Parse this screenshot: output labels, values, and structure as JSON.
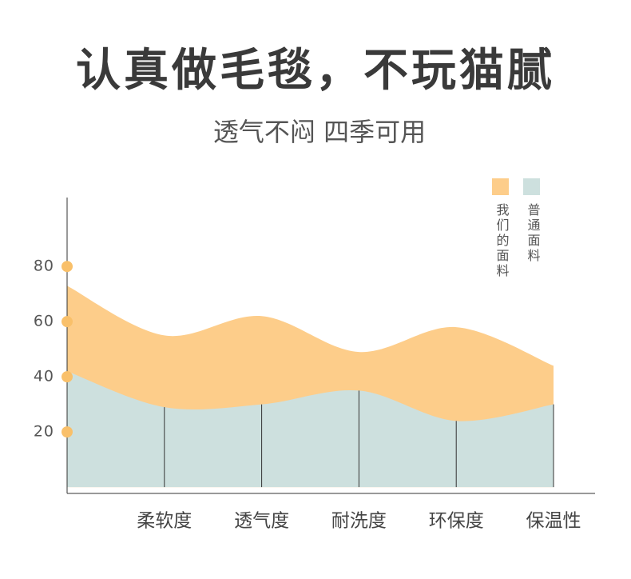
{
  "chart_data": {
    "type": "area",
    "title": "认真做毛毯，不玩猫腻",
    "subtitle": "透气不闷 四季可用",
    "categories": [
      null,
      "柔软度",
      "透气度",
      "耐洗度",
      "环保度",
      "保温性"
    ],
    "series": [
      {
        "name": "我们的面料",
        "color": "#fdcd8a",
        "values": [
          73,
          55,
          62,
          49,
          58,
          44
        ]
      },
      {
        "name": "普通面料",
        "color": "#cde0de",
        "values": [
          42,
          29,
          30,
          35,
          24,
          30
        ]
      }
    ],
    "ylim": [
      -2,
      105
    ],
    "yticks": [
      20,
      40,
      60,
      80
    ]
  }
}
